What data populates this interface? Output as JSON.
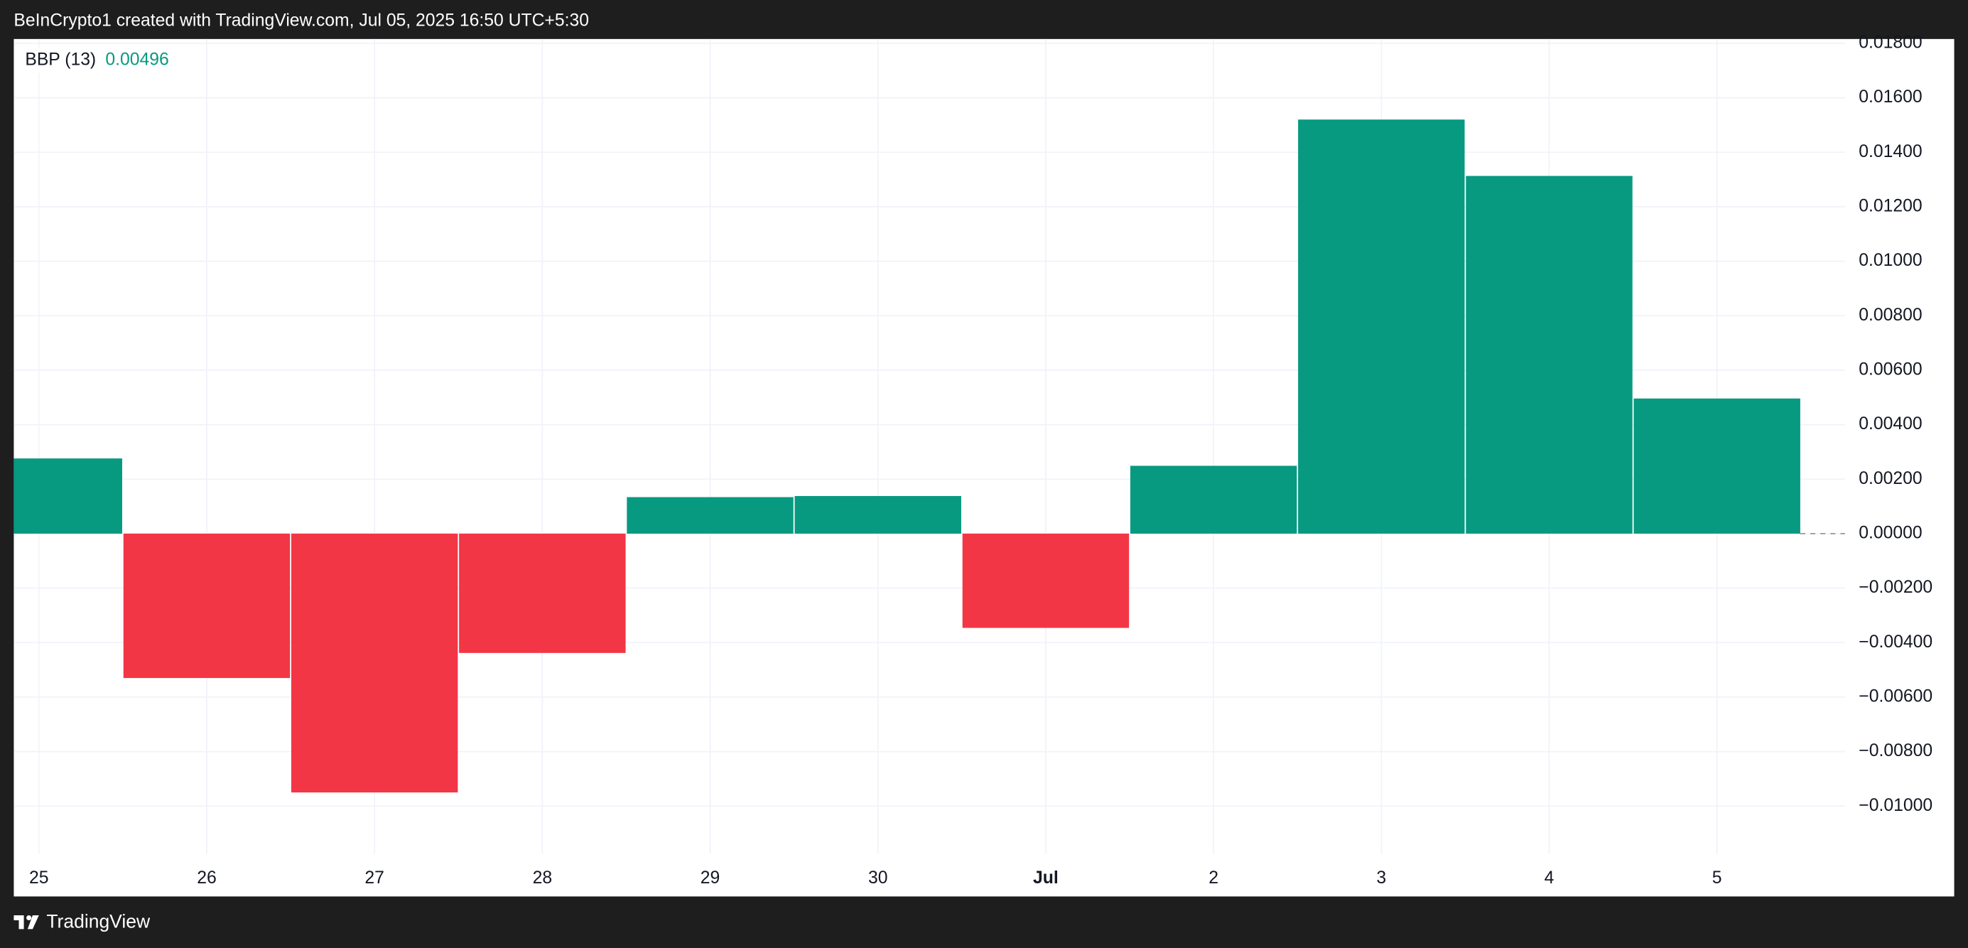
{
  "header": {
    "text": "BeInCrypto1 created with TradingView.com, Jul 05, 2025 16:50 UTC+5:30"
  },
  "chart_data": {
    "type": "bar",
    "indicator": "BBP (13)",
    "categories": [
      "25",
      "26",
      "27",
      "28",
      "29",
      "30",
      "Jul",
      "2",
      "3",
      "4",
      "5"
    ],
    "values": [
      0.00276,
      -0.0053,
      -0.0095,
      -0.00438,
      0.00134,
      0.00138,
      -0.00346,
      0.00249,
      0.0152,
      0.01313,
      0.00496
    ],
    "up_color": "#089981",
    "down_color": "#f23645",
    "ylim": [
      -0.011751,
      0.018157
    ],
    "yticks": [
      {
        "value": 0.018,
        "label": "0.01800"
      },
      {
        "value": 0.016,
        "label": "0.01600"
      },
      {
        "value": 0.014,
        "label": "0.01400"
      },
      {
        "value": 0.012,
        "label": "0.01200"
      },
      {
        "value": 0.01,
        "label": "0.01000"
      },
      {
        "value": 0.008,
        "label": "0.00800"
      },
      {
        "value": 0.006,
        "label": "0.00600"
      },
      {
        "value": 0.004,
        "label": "0.00400"
      },
      {
        "value": 0.002,
        "label": "0.00200"
      },
      {
        "value": 0,
        "label": "0.00000"
      },
      {
        "value": -0.002,
        "label": "−0.00200"
      },
      {
        "value": -0.004,
        "label": "−0.00400"
      },
      {
        "value": -0.006,
        "label": "−0.00600"
      },
      {
        "value": -0.008,
        "label": "−0.00800"
      },
      {
        "value": -0.01,
        "label": "−0.01000"
      }
    ],
    "grid": true
  },
  "footer": {
    "brand": "TradingView"
  }
}
